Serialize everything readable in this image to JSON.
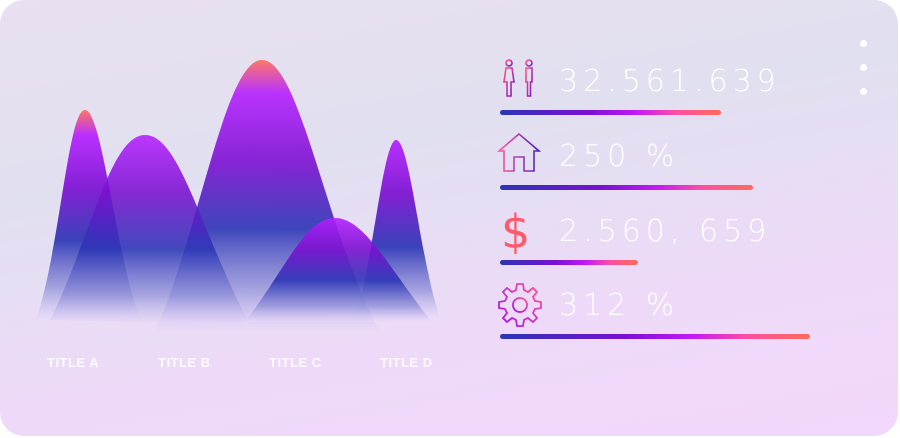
{
  "chart": {
    "labels": [
      "TITLE A",
      "TITLE B",
      "TITLE C",
      "TITLE D"
    ]
  },
  "stats": [
    {
      "icon": "people-icon",
      "value": "32.561.639",
      "progress_percent": 69
    },
    {
      "icon": "house-icon",
      "value": "250 %",
      "progress_percent": 79
    },
    {
      "icon": "dollar-icon",
      "value": "2.560, 659",
      "progress_percent": 43
    },
    {
      "icon": "gear-icon",
      "value": "312 %",
      "progress_percent": 97
    }
  ],
  "menu": {
    "icon": "more-vertical-icon"
  },
  "colors": {
    "coral": "#ff6b5a",
    "magenta": "#b520ff",
    "purple": "#7a10d0",
    "blue": "#2b35b5"
  }
}
